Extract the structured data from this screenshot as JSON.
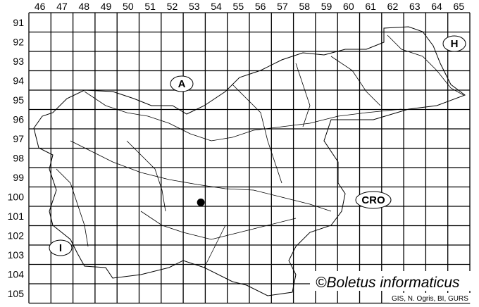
{
  "map": {
    "column_labels": [
      "46",
      "47",
      "48",
      "49",
      "50",
      "51",
      "52",
      "53",
      "54",
      "55",
      "56",
      "57",
      "58",
      "59",
      "60",
      "61",
      "62",
      "63",
      "64",
      "65"
    ],
    "row_labels": [
      "91",
      "92",
      "93",
      "94",
      "95",
      "96",
      "97",
      "98",
      "99",
      "100",
      "101",
      "102",
      "103",
      "104",
      "105"
    ],
    "region_labels": {
      "austria": "A",
      "hungary": "H",
      "croatia": "CRO",
      "italy": "I"
    },
    "records": [
      {
        "column": "53",
        "row": "100"
      }
    ],
    "record_color": "#000000",
    "line_color": "#000000",
    "copyright": "©Boletus informaticus",
    "source": "GIS, N. Ogris, BI, GURS"
  }
}
